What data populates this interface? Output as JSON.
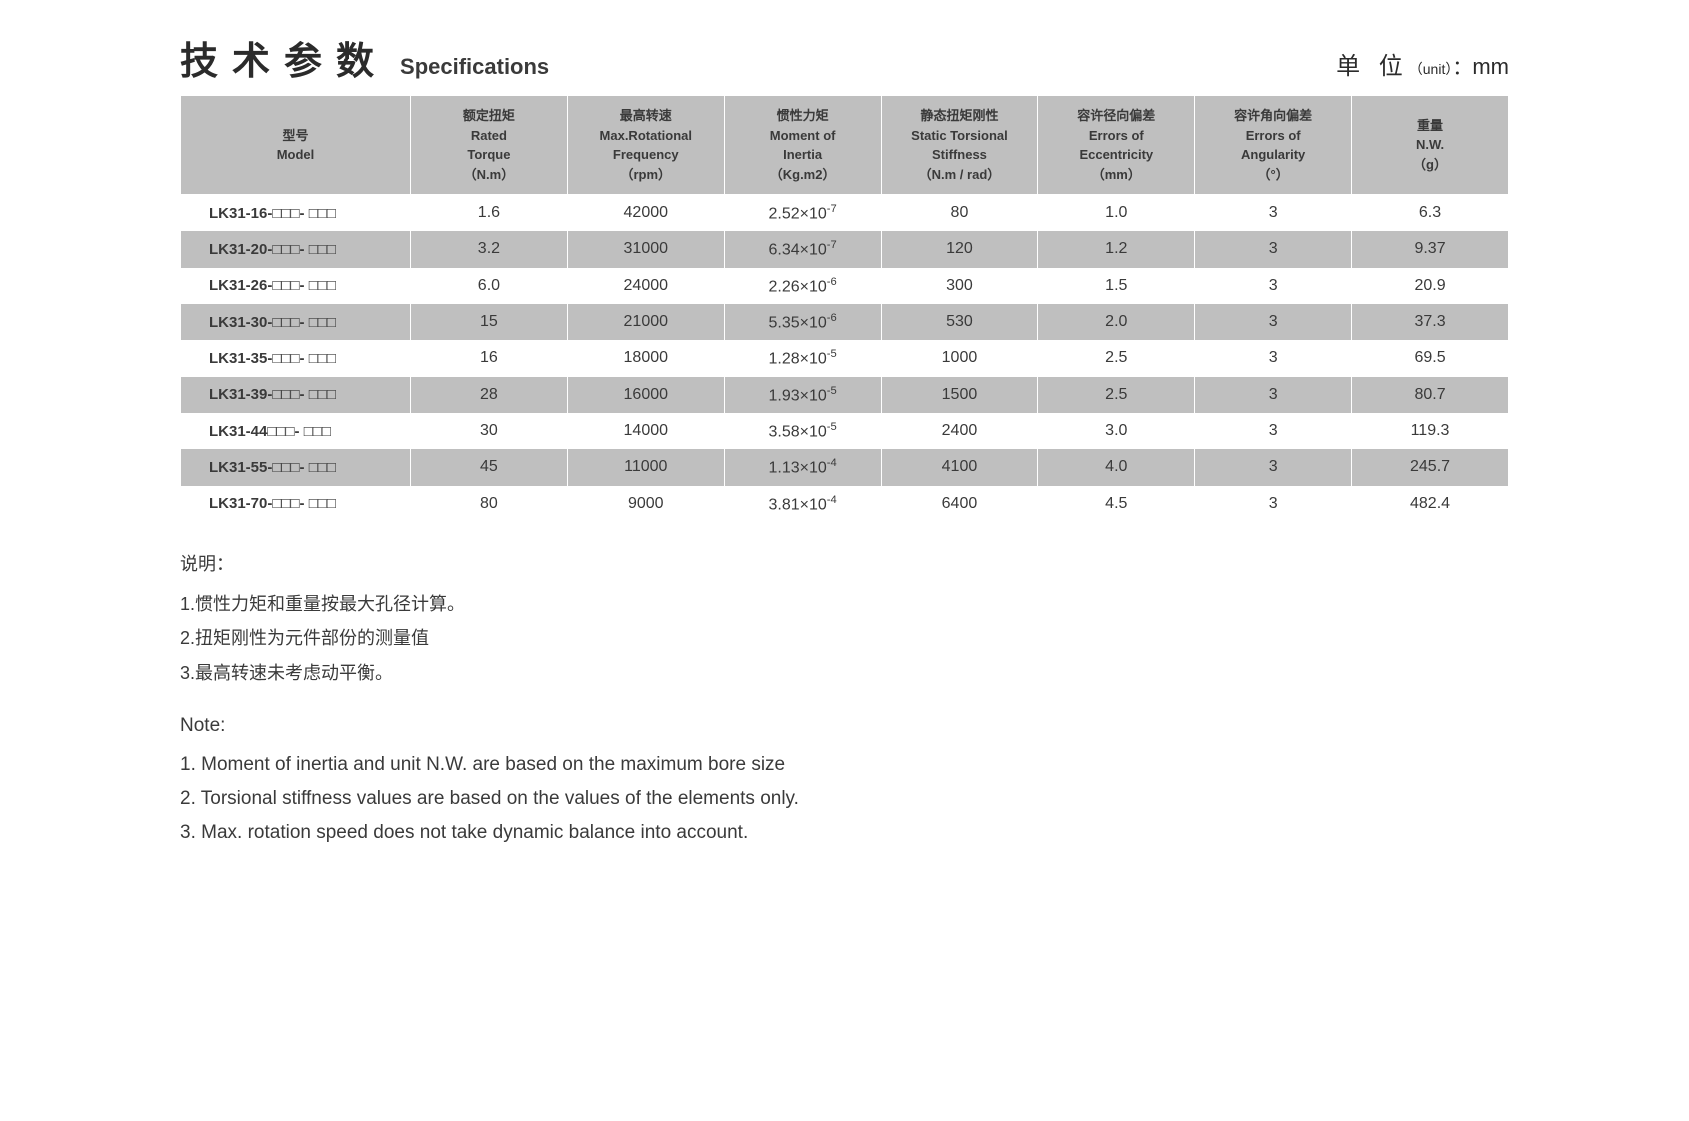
{
  "header": {
    "title_cn": "技术参数",
    "title_en": "Specifications",
    "unit_cn": "单 位",
    "unit_paren": "（unit）",
    "unit_colon": "：",
    "unit_value": "mm"
  },
  "table": {
    "columns": [
      {
        "cn": "型号",
        "en": "Model"
      },
      {
        "cn": "额定扭矩",
        "en": "Rated",
        "en2": "Torque",
        "unit": "（N.m）"
      },
      {
        "cn": "最高转速",
        "en": "Max.Rotational",
        "en2": "Frequency",
        "unit": "（rpm）"
      },
      {
        "cn": "惯性力矩",
        "en": "Moment of",
        "en2": "Inertia",
        "unit": "（Kg.m2）"
      },
      {
        "cn": "静态扭矩刚性",
        "en": "Static Torsional",
        "en2": "Stiffness",
        "unit": "（N.m / rad）"
      },
      {
        "cn": "容许径向偏差",
        "en": "Errors of",
        "en2": "Eccentricity",
        "unit": "（mm）"
      },
      {
        "cn": "容许角向偏差",
        "en": "Errors of",
        "en2": "Angularity",
        "unit": "（°）"
      },
      {
        "cn": "重量",
        "en": "N.W.",
        "unit": "（g）"
      }
    ],
    "rows": [
      {
        "model": "LK31-16-□□□- □□□",
        "torque": "1.6",
        "freq": "42000",
        "inertia_base": "2.52×10",
        "inertia_exp": "-7",
        "stiff": "80",
        "ecc": "1.0",
        "ang": "3",
        "nw": "6.3"
      },
      {
        "model": "LK31-20-□□□- □□□",
        "torque": "3.2",
        "freq": "31000",
        "inertia_base": "6.34×10",
        "inertia_exp": "-7",
        "stiff": "120",
        "ecc": "1.2",
        "ang": "3",
        "nw": "9.37"
      },
      {
        "model": "LK31-26-□□□- □□□",
        "torque": "6.0",
        "freq": "24000",
        "inertia_base": "2.26×10",
        "inertia_exp": "-6",
        "stiff": "300",
        "ecc": "1.5",
        "ang": "3",
        "nw": "20.9"
      },
      {
        "model": "LK31-30-□□□- □□□",
        "torque": "15",
        "freq": "21000",
        "inertia_base": "5.35×10",
        "inertia_exp": "-6",
        "stiff": "530",
        "ecc": "2.0",
        "ang": "3",
        "nw": "37.3"
      },
      {
        "model": "LK31-35-□□□- □□□",
        "torque": "16",
        "freq": "18000",
        "inertia_base": "1.28×10",
        "inertia_exp": "-5",
        "stiff": "1000",
        "ecc": "2.5",
        "ang": "3",
        "nw": "69.5"
      },
      {
        "model": "LK31-39-□□□- □□□",
        "torque": "28",
        "freq": "16000",
        "inertia_base": "1.93×10",
        "inertia_exp": "-5",
        "stiff": "1500",
        "ecc": "2.5",
        "ang": "3",
        "nw": "80.7"
      },
      {
        "model": "LK31-44□□□- □□□",
        "torque": "30",
        "freq": "14000",
        "inertia_base": "3.58×10",
        "inertia_exp": "-5",
        "stiff": "2400",
        "ecc": "3.0",
        "ang": "3",
        "nw": "119.3"
      },
      {
        "model": "LK31-55-□□□- □□□",
        "torque": "45",
        "freq": "11000",
        "inertia_base": "1.13×10",
        "inertia_exp": "-4",
        "stiff": "4100",
        "ecc": "4.0",
        "ang": "3",
        "nw": "245.7"
      },
      {
        "model": "LK31-70-□□□- □□□",
        "torque": "80",
        "freq": "9000",
        "inertia_base": "3.81×10",
        "inertia_exp": "-4",
        "stiff": "6400",
        "ecc": "4.5",
        "ang": "3",
        "nw": "482.4"
      }
    ],
    "header_bg": "#bfbfbf",
    "row_odd_bg": "#ffffff",
    "row_even_bg": "#bfbfbf",
    "text_color": "#3a3a3a"
  },
  "notes": {
    "title_cn": "说明：",
    "items_cn": [
      "1.惯性力矩和重量按最大孔径计算。",
      "2.扭矩刚性为元件部份的测量值",
      "3.最高转速未考虑动平衡。"
    ],
    "title_en": "Note:",
    "items_en": [
      "1. Moment of inertia and unit N.W. are based on the maximum bore size",
      "2. Torsional stiffness values are based on the values of the elements only.",
      "3. Max. rotation speed does not take dynamic balance into account."
    ]
  }
}
